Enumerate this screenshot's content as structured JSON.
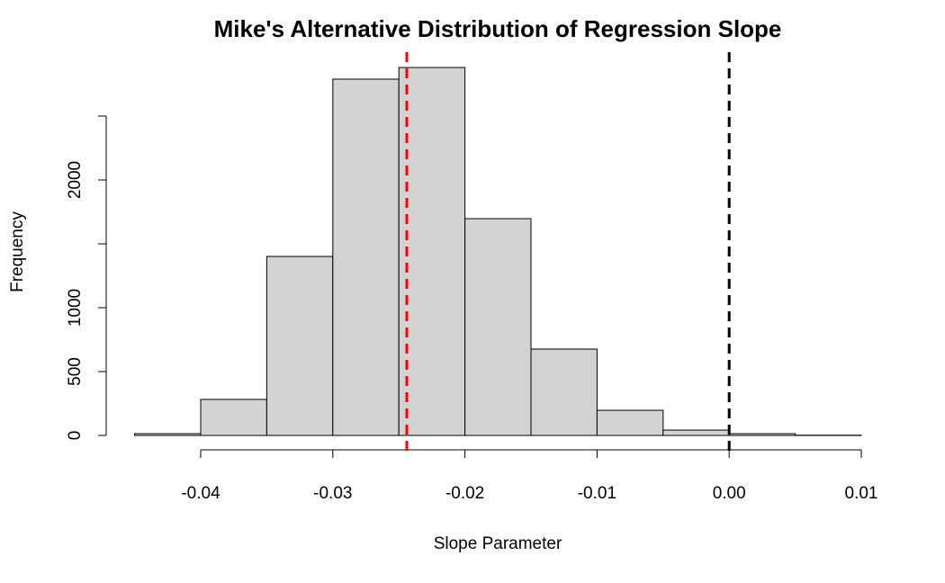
{
  "chart_data": {
    "type": "histogram",
    "title": "Mike's Alternative Distribution of Regression Slope",
    "xlabel": "Slope Parameter",
    "ylabel": "Frequency",
    "bins": [
      -0.045,
      -0.04,
      -0.035,
      -0.03,
      -0.025,
      -0.02,
      -0.015,
      -0.01,
      -0.005,
      0,
      0.005,
      0.01
    ],
    "counts": [
      14,
      282,
      1401,
      2789,
      2880,
      1697,
      676,
      197,
      42,
      14,
      2
    ],
    "color": "#d3d3d3",
    "xlim": [
      -0.045,
      0.01
    ],
    "ylim": [
      0,
      2950
    ],
    "xticks": [
      {
        "value": -0.04,
        "label": "-0.04"
      },
      {
        "value": -0.03,
        "label": "-0.03"
      },
      {
        "value": -0.02,
        "label": "-0.02"
      },
      {
        "value": -0.01,
        "label": "-0.01"
      },
      {
        "value": 0,
        "label": "0.00"
      },
      {
        "value": 0.01,
        "label": "0.01"
      }
    ],
    "yticks": [
      0,
      500,
      1000,
      {
        "value": 1500,
        "label": null
      },
      2000,
      {
        "value": 2500,
        "label": null
      }
    ],
    "vlines": [
      {
        "value": -0.0244,
        "color": "#ff0000"
      },
      {
        "value": 0,
        "color": "#000000"
      }
    ]
  }
}
